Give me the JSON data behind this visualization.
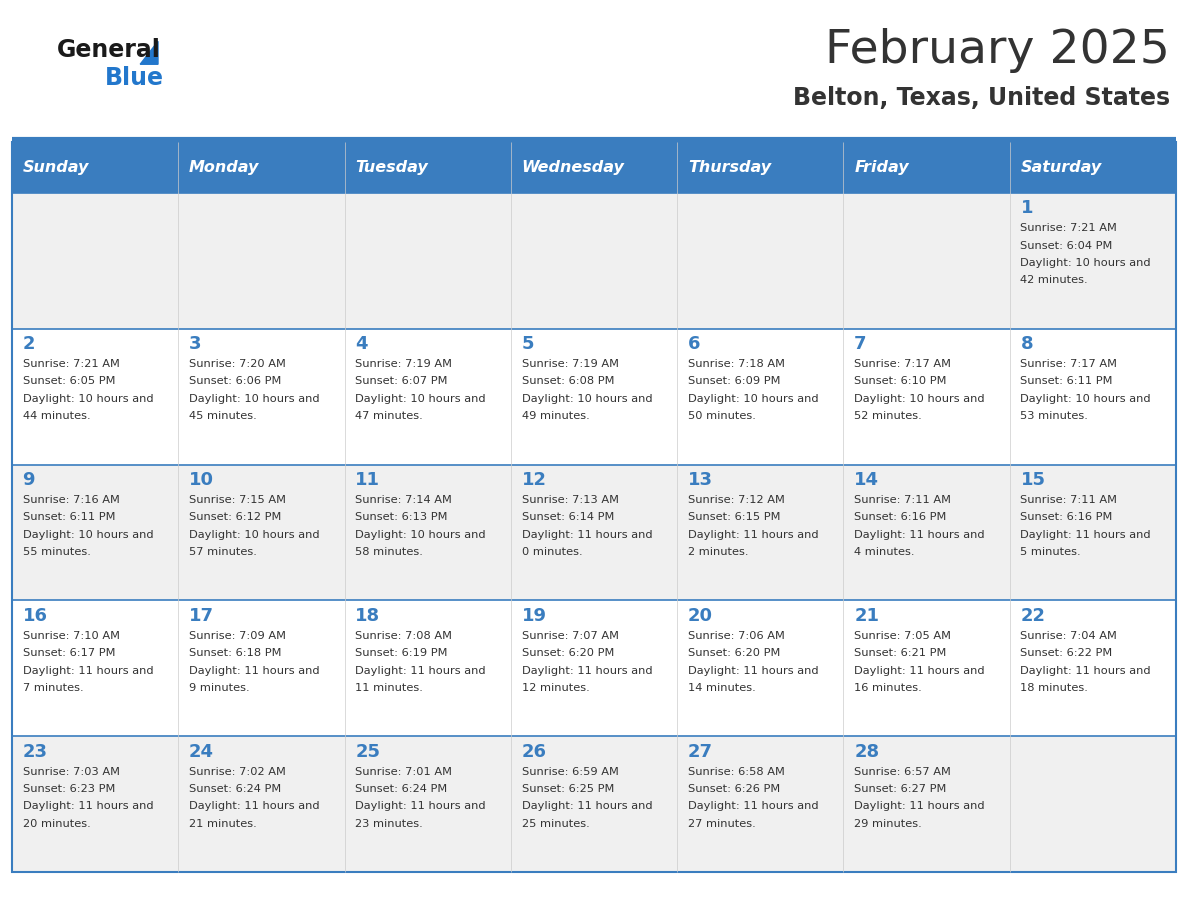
{
  "title": "February 2025",
  "subtitle": "Belton, Texas, United States",
  "header_color": "#3a7dbf",
  "header_text_color": "#ffffff",
  "day_names": [
    "Sunday",
    "Monday",
    "Tuesday",
    "Wednesday",
    "Thursday",
    "Friday",
    "Saturday"
  ],
  "bg_color": "#ffffff",
  "cell_bg_even": "#f0f0f0",
  "cell_bg_odd": "#ffffff",
  "separator_color": "#3a7dbf",
  "day_num_color": "#3a7dbf",
  "text_color": "#333333",
  "logo_general_color": "#1a1a1a",
  "logo_blue_color": "#2277cc",
  "calendar_data": [
    [
      null,
      null,
      null,
      null,
      null,
      null,
      {
        "day": 1,
        "sunrise": "7:21 AM",
        "sunset": "6:04 PM",
        "daylight": "10 hours and 42 minutes."
      }
    ],
    [
      {
        "day": 2,
        "sunrise": "7:21 AM",
        "sunset": "6:05 PM",
        "daylight": "10 hours and 44 minutes."
      },
      {
        "day": 3,
        "sunrise": "7:20 AM",
        "sunset": "6:06 PM",
        "daylight": "10 hours and 45 minutes."
      },
      {
        "day": 4,
        "sunrise": "7:19 AM",
        "sunset": "6:07 PM",
        "daylight": "10 hours and 47 minutes."
      },
      {
        "day": 5,
        "sunrise": "7:19 AM",
        "sunset": "6:08 PM",
        "daylight": "10 hours and 49 minutes."
      },
      {
        "day": 6,
        "sunrise": "7:18 AM",
        "sunset": "6:09 PM",
        "daylight": "10 hours and 50 minutes."
      },
      {
        "day": 7,
        "sunrise": "7:17 AM",
        "sunset": "6:10 PM",
        "daylight": "10 hours and 52 minutes."
      },
      {
        "day": 8,
        "sunrise": "7:17 AM",
        "sunset": "6:11 PM",
        "daylight": "10 hours and 53 minutes."
      }
    ],
    [
      {
        "day": 9,
        "sunrise": "7:16 AM",
        "sunset": "6:11 PM",
        "daylight": "10 hours and 55 minutes."
      },
      {
        "day": 10,
        "sunrise": "7:15 AM",
        "sunset": "6:12 PM",
        "daylight": "10 hours and 57 minutes."
      },
      {
        "day": 11,
        "sunrise": "7:14 AM",
        "sunset": "6:13 PM",
        "daylight": "10 hours and 58 minutes."
      },
      {
        "day": 12,
        "sunrise": "7:13 AM",
        "sunset": "6:14 PM",
        "daylight": "11 hours and 0 minutes."
      },
      {
        "day": 13,
        "sunrise": "7:12 AM",
        "sunset": "6:15 PM",
        "daylight": "11 hours and 2 minutes."
      },
      {
        "day": 14,
        "sunrise": "7:11 AM",
        "sunset": "6:16 PM",
        "daylight": "11 hours and 4 minutes."
      },
      {
        "day": 15,
        "sunrise": "7:11 AM",
        "sunset": "6:16 PM",
        "daylight": "11 hours and 5 minutes."
      }
    ],
    [
      {
        "day": 16,
        "sunrise": "7:10 AM",
        "sunset": "6:17 PM",
        "daylight": "11 hours and 7 minutes."
      },
      {
        "day": 17,
        "sunrise": "7:09 AM",
        "sunset": "6:18 PM",
        "daylight": "11 hours and 9 minutes."
      },
      {
        "day": 18,
        "sunrise": "7:08 AM",
        "sunset": "6:19 PM",
        "daylight": "11 hours and 11 minutes."
      },
      {
        "day": 19,
        "sunrise": "7:07 AM",
        "sunset": "6:20 PM",
        "daylight": "11 hours and 12 minutes."
      },
      {
        "day": 20,
        "sunrise": "7:06 AM",
        "sunset": "6:20 PM",
        "daylight": "11 hours and 14 minutes."
      },
      {
        "day": 21,
        "sunrise": "7:05 AM",
        "sunset": "6:21 PM",
        "daylight": "11 hours and 16 minutes."
      },
      {
        "day": 22,
        "sunrise": "7:04 AM",
        "sunset": "6:22 PM",
        "daylight": "11 hours and 18 minutes."
      }
    ],
    [
      {
        "day": 23,
        "sunrise": "7:03 AM",
        "sunset": "6:23 PM",
        "daylight": "11 hours and 20 minutes."
      },
      {
        "day": 24,
        "sunrise": "7:02 AM",
        "sunset": "6:24 PM",
        "daylight": "11 hours and 21 minutes."
      },
      {
        "day": 25,
        "sunrise": "7:01 AM",
        "sunset": "6:24 PM",
        "daylight": "11 hours and 23 minutes."
      },
      {
        "day": 26,
        "sunrise": "6:59 AM",
        "sunset": "6:25 PM",
        "daylight": "11 hours and 25 minutes."
      },
      {
        "day": 27,
        "sunrise": "6:58 AM",
        "sunset": "6:26 PM",
        "daylight": "11 hours and 27 minutes."
      },
      {
        "day": 28,
        "sunrise": "6:57 AM",
        "sunset": "6:27 PM",
        "daylight": "11 hours and 29 minutes."
      },
      null
    ]
  ],
  "figsize": [
    11.88,
    9.18
  ],
  "dpi": 100
}
